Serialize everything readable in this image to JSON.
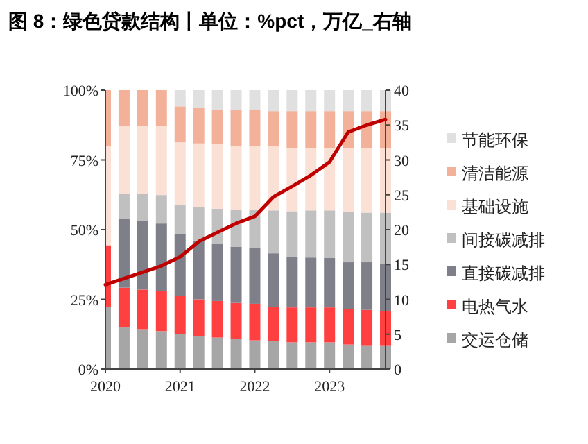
{
  "chart_data": {
    "type": "bar",
    "stacked": true,
    "title": "图 8：绿色贷款结构丨单位：%pct，万亿_右轴",
    "categories": [
      "2020",
      null,
      null,
      null,
      "2021",
      null,
      null,
      null,
      "2022",
      null,
      null,
      null,
      "2023",
      null,
      null,
      null
    ],
    "series": [
      {
        "name": "交运仓储",
        "color": "#a6a6a6",
        "values": [
          22.4,
          14.9,
          14.3,
          13.6,
          12.6,
          11.9,
          11.3,
          10.8,
          10.3,
          10.0,
          9.6,
          9.6,
          9.6,
          8.8,
          8.3,
          8.3
        ]
      },
      {
        "name": "电热气水",
        "color": "#ff4040",
        "values": [
          22.0,
          14.3,
          14.2,
          14.4,
          13.6,
          13.1,
          13.1,
          12.9,
          13.1,
          12.2,
          12.5,
          12.5,
          12.5,
          12.8,
          12.9,
          12.6
        ]
      },
      {
        "name": "直接碳减排",
        "color": "#7f7f8a",
        "values": [
          0,
          24.7,
          24.6,
          24.2,
          22.1,
          21.1,
          20.4,
          20.2,
          19.9,
          19.3,
          18.2,
          17.9,
          17.7,
          16.7,
          17.1,
          16.9
        ]
      },
      {
        "name": "间接碳减排",
        "color": "#c0c0c0",
        "values": [
          0,
          8.8,
          9.6,
          10.2,
          10.4,
          11.9,
          12.7,
          13.3,
          13.9,
          15.4,
          16.3,
          16.9,
          17.1,
          18.1,
          17.8,
          18.3
        ]
      },
      {
        "name": "基础设施",
        "color": "#fbe0d6",
        "values": [
          35.7,
          24.4,
          24.4,
          24.7,
          22.6,
          22.9,
          23.1,
          22.9,
          22.9,
          23.2,
          22.7,
          22.4,
          22.4,
          22.9,
          23.2,
          23.2
        ]
      },
      {
        "name": "清洁能源",
        "color": "#f4b19a",
        "values": [
          19.9,
          12.9,
          12.9,
          12.9,
          12.9,
          12.8,
          12.4,
          12.8,
          12.8,
          12.4,
          13.2,
          13.2,
          13.2,
          13.2,
          13.2,
          13.2
        ]
      },
      {
        "name": "节能环保",
        "color": "#e0e0e0",
        "values": [
          0,
          0,
          0,
          0,
          5.8,
          6.3,
          7.0,
          7.1,
          7.1,
          7.5,
          7.5,
          7.5,
          7.5,
          7.5,
          7.5,
          7.5
        ]
      },
      {
        "type": "line",
        "axis": "y2",
        "color": "#c00000",
        "values": [
          12.1,
          13.0,
          13.9,
          14.8,
          16.1,
          18.3,
          19.6,
          20.9,
          21.9,
          24.7,
          26.2,
          27.8,
          29.7,
          34.0,
          35.0,
          35.8
        ]
      }
    ],
    "ylim": [
      0,
      100
    ],
    "yticks": [
      {
        "value": 0,
        "label": "0%"
      },
      {
        "value": 25,
        "label": "25%"
      },
      {
        "value": 50,
        "label": "50%"
      },
      {
        "value": 75,
        "label": "75%"
      },
      {
        "value": 100,
        "label": "100%"
      }
    ],
    "y2lim": [
      0,
      40
    ],
    "y2ticks": [
      0,
      5,
      10,
      15,
      20,
      25,
      30,
      35,
      40
    ],
    "legend": "right"
  }
}
